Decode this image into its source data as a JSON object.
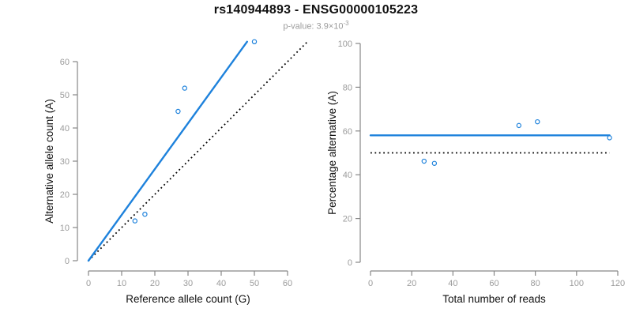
{
  "header": {
    "title": "rs140944893 - ENSG00000105223",
    "subtitle_main": "p-value: 3.9×10",
    "subtitle_exponent": "-3"
  },
  "colors": {
    "accent_blue": "#1E82DC",
    "dotted_black": "#000000",
    "axis_gray": "#878787",
    "tick_label_gray": "#9b9b9b",
    "title_black": "#111111"
  },
  "chart_data": [
    {
      "type": "scatter",
      "name": "allele-count-scatter",
      "xlabel": "Reference allele count (G)",
      "ylabel": "Alternative allele count (A)",
      "xlim": [
        0,
        60
      ],
      "ylim": [
        0,
        60
      ],
      "xticks": [
        0,
        10,
        20,
        30,
        40,
        50,
        60
      ],
      "yticks": [
        0,
        10,
        20,
        30,
        40,
        50,
        60
      ],
      "grid": false,
      "points": [
        [
          14,
          12
        ],
        [
          17,
          14
        ],
        [
          27,
          45
        ],
        [
          29,
          52
        ],
        [
          50,
          66
        ]
      ],
      "lines": [
        {
          "name": "identity",
          "style": "dotted",
          "color_key": "dotted_black",
          "x1": 0,
          "y1": 0,
          "x2": 65.8,
          "y2": 65.8
        },
        {
          "name": "fit",
          "style": "solid",
          "color_key": "accent_blue",
          "x1": 0,
          "y1": 0,
          "x2": 47.8,
          "y2": 66
        }
      ]
    },
    {
      "type": "scatter",
      "name": "percentage-scatter",
      "xlabel": "Total number of reads",
      "ylabel": "Percentage alternative (A)",
      "xlim": [
        0,
        120
      ],
      "ylim": [
        0,
        100
      ],
      "xticks": [
        0,
        20,
        40,
        60,
        80,
        100,
        120
      ],
      "yticks": [
        0,
        20,
        40,
        60,
        80,
        100
      ],
      "grid": false,
      "points": [
        [
          26,
          46.2
        ],
        [
          31,
          45.2
        ],
        [
          72,
          62.5
        ],
        [
          81,
          64.2
        ],
        [
          116,
          56.9
        ]
      ],
      "lines": [
        {
          "name": "reference-50pct",
          "style": "dotted",
          "color_key": "dotted_black",
          "x1": 0,
          "y1": 50,
          "x2": 116,
          "y2": 50
        },
        {
          "name": "mean-percentage",
          "style": "solid",
          "color_key": "accent_blue",
          "x1": 0,
          "y1": 58,
          "x2": 116,
          "y2": 58
        }
      ]
    }
  ]
}
